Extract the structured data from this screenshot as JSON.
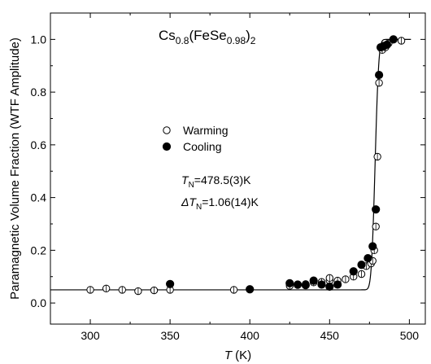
{
  "chart_data": {
    "type": "scatter",
    "title_formula": {
      "parts": [
        {
          "t": "Cs",
          "s": "normal"
        },
        {
          "t": "0.8",
          "s": "sub"
        },
        {
          "t": "(FeSe",
          "s": "normal"
        },
        {
          "t": "0.98",
          "s": "sub"
        },
        {
          "t": ")",
          "s": "normal"
        },
        {
          "t": "2",
          "s": "sub"
        }
      ]
    },
    "xlabel": {
      "main": "T",
      "unit": " (K)"
    },
    "ylabel": "Paramagnetic Volume Fraction (WTF Amplitude)",
    "xlim": [
      275,
      510
    ],
    "ylim": [
      -0.08,
      1.1
    ],
    "xticks": [
      "300",
      "350",
      "400",
      "450",
      "500"
    ],
    "yticks": [
      "0.0",
      "0.2",
      "0.4",
      "0.6",
      "0.8",
      "1.0"
    ],
    "legend": {
      "position": "center-left",
      "entries": [
        {
          "label": "Warming",
          "marker": "open-circle"
        },
        {
          "label": "Cooling",
          "marker": "filled-circle"
        }
      ]
    },
    "annotations": [
      {
        "sym": "T",
        "sub": "N",
        "rest": "=478.5(3)K"
      },
      {
        "sym": "ΔT",
        "sub": "N",
        "rest": "=1.06(14)K"
      }
    ],
    "fit": {
      "model": "erf step",
      "A0": 0.05,
      "A1": 1.0,
      "TN": 478.5,
      "width": 1.8
    },
    "series": [
      {
        "name": "Warming",
        "marker": "open",
        "points": [
          [
            300,
            0.05
          ],
          [
            310,
            0.055
          ],
          [
            320,
            0.05
          ],
          [
            330,
            0.045
          ],
          [
            340,
            0.048
          ],
          [
            350,
            0.05
          ],
          [
            390,
            0.05
          ],
          [
            425,
            0.065
          ],
          [
            430,
            0.068
          ],
          [
            435,
            0.072
          ],
          [
            440,
            0.078
          ],
          [
            445,
            0.08
          ],
          [
            450,
            0.085
          ],
          [
            450,
            0.095
          ],
          [
            455,
            0.085
          ],
          [
            460,
            0.09
          ],
          [
            465,
            0.1
          ],
          [
            470,
            0.11
          ],
          [
            473,
            0.14
          ],
          [
            476,
            0.15
          ],
          [
            477,
            0.16
          ],
          [
            478,
            0.2
          ],
          [
            479,
            0.29
          ],
          [
            480,
            0.555
          ],
          [
            481,
            0.835
          ],
          [
            483,
            0.96
          ],
          [
            485,
            0.97
          ],
          [
            487,
            0.985
          ],
          [
            495,
            0.995
          ]
        ]
      },
      {
        "name": "Cooling",
        "marker": "filled",
        "points": [
          [
            350,
            0.072
          ],
          [
            400,
            0.052
          ],
          [
            425,
            0.075
          ],
          [
            430,
            0.07
          ],
          [
            435,
            0.068
          ],
          [
            440,
            0.085
          ],
          [
            445,
            0.07
          ],
          [
            450,
            0.062
          ],
          [
            455,
            0.07
          ],
          [
            465,
            0.12
          ],
          [
            470,
            0.145
          ],
          [
            474,
            0.17
          ],
          [
            477,
            0.215
          ],
          [
            479,
            0.355
          ],
          [
            481,
            0.865
          ],
          [
            482,
            0.97
          ],
          [
            484,
            0.975
          ],
          [
            486,
            0.98
          ],
          [
            490,
            1.0
          ]
        ]
      }
    ]
  }
}
